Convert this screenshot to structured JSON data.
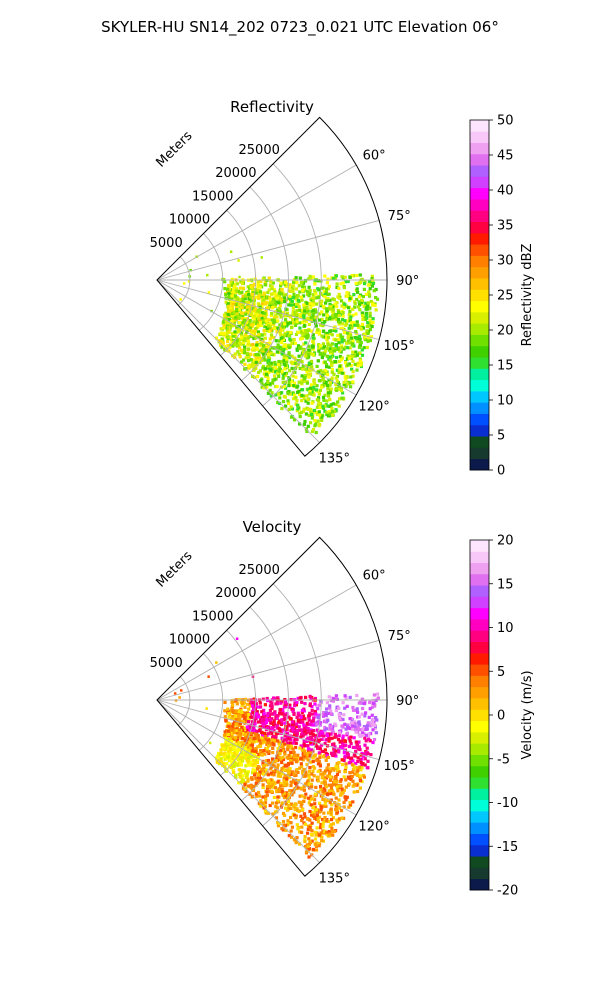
{
  "figure_title": "SKYLER-HU  SN14_202  0723_0.021 UTC Elevation 06°",
  "chart_data": [
    {
      "type": "heatmap",
      "projection": "polar-sector",
      "title": "Reflectivity",
      "radial_label": "Meters",
      "range_max": 35000,
      "radial_ticks": [
        "5000",
        "10000",
        "15000",
        "20000",
        "25000"
      ],
      "angle_min_deg": 45,
      "angle_max_deg": 140,
      "angle_ticks": [
        "60°",
        "75°",
        "90°",
        "105°",
        "120°",
        "135°"
      ],
      "colorbar": {
        "label": "Reflectivity dBZ",
        "vmin": 0,
        "vmax": 50,
        "ticks": [
          "0",
          "5",
          "10",
          "15",
          "20",
          "25",
          "30",
          "35",
          "40",
          "45",
          "50"
        ],
        "colors": [
          "#0b1a4a",
          "#173a2e",
          "#0f4a20",
          "#0a2fd0",
          "#0050ff",
          "#0090ff",
          "#00c8ff",
          "#00ffd8",
          "#00f0a0",
          "#30e030",
          "#40d000",
          "#70e000",
          "#a8ea00",
          "#d8f000",
          "#ffff00",
          "#ffe000",
          "#ffc000",
          "#ffa000",
          "#ff8000",
          "#ff5000",
          "#ff1a00",
          "#ff0040",
          "#ff0080",
          "#ff00c0",
          "#ff00ff",
          "#d040ff",
          "#b060ff",
          "#e070f0",
          "#f0a0f0",
          "#f8c8f8",
          "#fde6fd"
        ]
      },
      "echo_description": "main echo region from 90° to 135° beyond ~10000 m, dominant values 15–25 dBZ"
    },
    {
      "type": "heatmap",
      "projection": "polar-sector",
      "title": "Velocity",
      "radial_label": "Meters",
      "range_max": 35000,
      "radial_ticks": [
        "5000",
        "10000",
        "15000",
        "20000",
        "25000"
      ],
      "angle_min_deg": 45,
      "angle_max_deg": 140,
      "angle_ticks": [
        "60°",
        "75°",
        "90°",
        "105°",
        "120°",
        "135°"
      ],
      "colorbar": {
        "label": "Velocity (m/s)",
        "vmin": -20,
        "vmax": 20,
        "ticks": [
          "-20",
          "-15",
          "-10",
          "-5",
          "0",
          "5",
          "10",
          "15",
          "20"
        ],
        "colors": [
          "#0b1a4a",
          "#173a2e",
          "#0f4a20",
          "#0a2fd0",
          "#0050ff",
          "#0090ff",
          "#00c8ff",
          "#00ffd8",
          "#00f0a0",
          "#30e030",
          "#40d000",
          "#70e000",
          "#a8ea00",
          "#d8f000",
          "#ffff00",
          "#ffe000",
          "#ffc000",
          "#ffa000",
          "#ff8000",
          "#ff5000",
          "#ff1a00",
          "#ff0040",
          "#ff0080",
          "#ff00c0",
          "#ff00ff",
          "#d040ff",
          "#b060ff",
          "#e070f0",
          "#f0a0f0",
          "#f8c8f8",
          "#fde6fd"
        ]
      },
      "echo_description": "yellow/orange near 0–5 m/s in the south, red 8–12 m/s near 95–105°, magenta ~15 m/s at the far edge"
    }
  ]
}
